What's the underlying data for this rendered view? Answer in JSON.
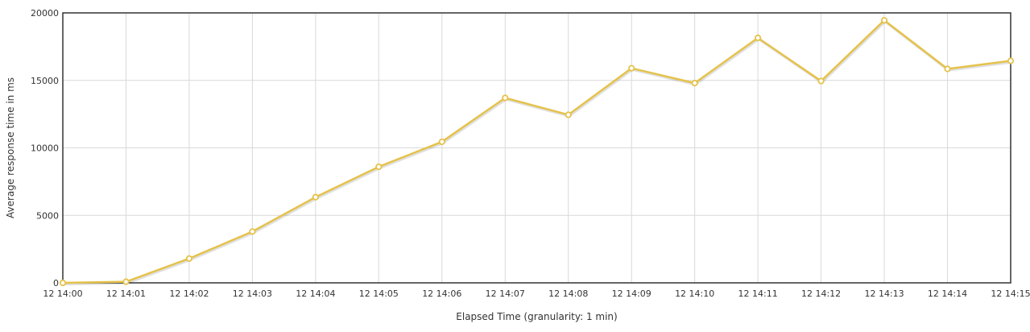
{
  "chart_data": {
    "type": "line",
    "title": "",
    "xlabel": "Elapsed Time (granularity: 1 min)",
    "ylabel": "Average response time in ms",
    "categories": [
      "12 14:00",
      "12 14:01",
      "12 14:02",
      "12 14:03",
      "12 14:04",
      "12 14:05",
      "12 14:06",
      "12 14:07",
      "12 14:08",
      "12 14:09",
      "12 14:10",
      "12 14:11",
      "12 14:12",
      "12 14:13",
      "12 14:14",
      "12 14:15"
    ],
    "series": [
      {
        "color": "#e5c24b",
        "values": [
          0,
          80,
          1800,
          3800,
          6350,
          8600,
          10450,
          13700,
          12450,
          15900,
          14800,
          18150,
          14950,
          19450,
          15850,
          16450
        ]
      }
    ],
    "ylim": [
      0,
      20000
    ],
    "yticks": [
      0,
      5000,
      10000,
      15000,
      20000
    ],
    "grid": true,
    "legend": "none"
  }
}
